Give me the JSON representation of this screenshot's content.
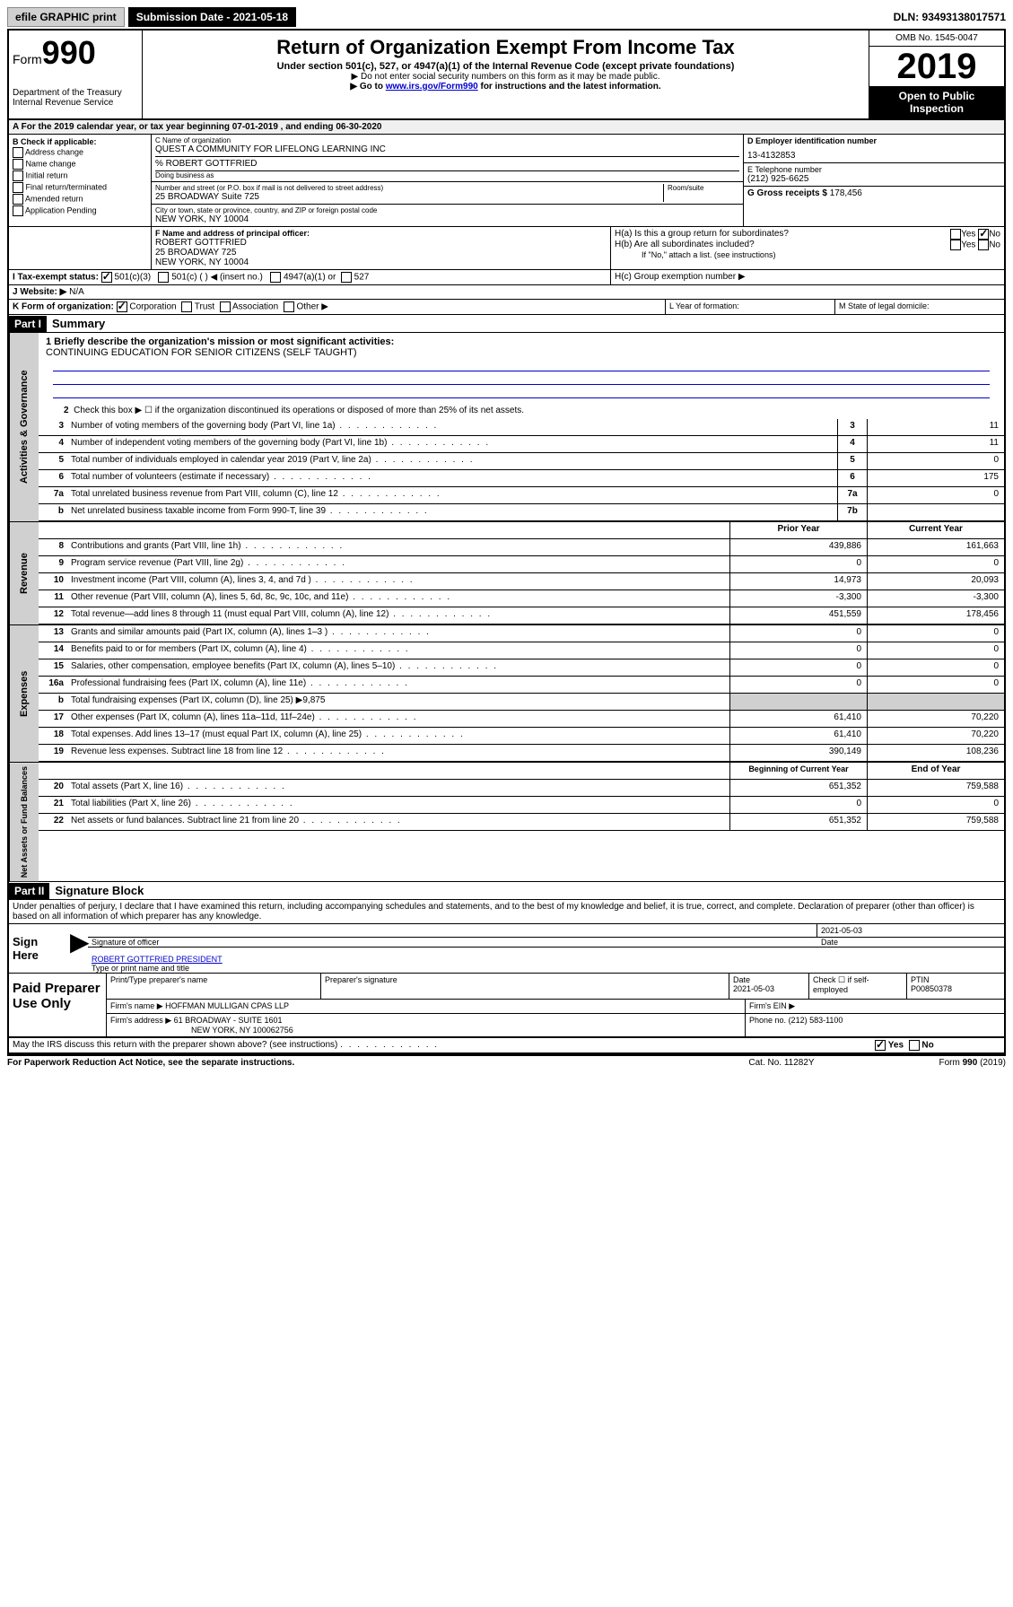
{
  "top": {
    "efile": "efile GRAPHIC print",
    "submission": "Submission Date - 2021-05-18",
    "dln": "DLN: 93493138017571"
  },
  "header": {
    "form_prefix": "Form",
    "form_number": "990",
    "title": "Return of Organization Exempt From Income Tax",
    "subtitle": "Under section 501(c), 527, or 4947(a)(1) of the Internal Revenue Code (except private foundations)",
    "note1": "▶ Do not enter social security numbers on this form as it may be made public.",
    "note2_pre": "▶ Go to ",
    "note2_link": "www.irs.gov/Form990",
    "note2_post": " for instructions and the latest information.",
    "dept": "Department of the Treasury\nInternal Revenue Service",
    "omb": "OMB No. 1545-0047",
    "year": "2019",
    "open_public": "Open to Public Inspection"
  },
  "line_a": "A For the 2019 calendar year, or tax year beginning 07-01-2019    , and ending 06-30-2020",
  "section_b": {
    "label": "B Check if applicable:",
    "items": [
      "Address change",
      "Name change",
      "Initial return",
      "Final return/terminated",
      "Amended return",
      "Application Pending"
    ]
  },
  "section_c": {
    "name_label": "C Name of organization",
    "name": "QUEST A COMMUNITY FOR LIFELONG LEARNING INC",
    "care_of": "% ROBERT GOTTFRIED",
    "dba_label": "Doing business as",
    "addr_label": "Number and street (or P.O. box if mail is not delivered to street address)",
    "room_label": "Room/suite",
    "addr": "25 BROADWAY Suite 725",
    "city_label": "City or town, state or province, country, and ZIP or foreign postal code",
    "city": "NEW YORK, NY  10004"
  },
  "section_d": {
    "label": "D Employer identification number",
    "ein": "13-4132853"
  },
  "section_e": {
    "label": "E Telephone number",
    "phone": "(212) 925-6625"
  },
  "section_g": {
    "label": "G Gross receipts $",
    "amount": "178,456"
  },
  "section_f": {
    "label": "F Name and address of principal officer:",
    "name": "ROBERT GOTTFRIED",
    "addr": "25 BROADWAY 725",
    "city": "NEW YORK, NY  10004"
  },
  "section_h": {
    "ha": "H(a)  Is this a group return for subordinates?",
    "hb": "H(b)  Are all subordinates included?",
    "hb_note": "If \"No,\" attach a list. (see instructions)",
    "hc": "H(c)  Group exemption number ▶",
    "yes": "Yes",
    "no": "No"
  },
  "section_i": {
    "label": "I    Tax-exempt status:",
    "opt1": "501(c)(3)",
    "opt2": "501(c) (  ) ◀ (insert no.)",
    "opt3": "4947(a)(1) or",
    "opt4": "527"
  },
  "section_j": {
    "label": "J   Website: ▶",
    "value": "N/A"
  },
  "section_k": {
    "label": "K Form of organization:",
    "corp": "Corporation",
    "trust": "Trust",
    "assoc": "Association",
    "other": "Other ▶"
  },
  "section_l": "L Year of formation:",
  "section_m": "M State of legal domicile:",
  "part1": {
    "header": "Part I",
    "title": "Summary",
    "line1_label": "1  Briefly describe the organization's mission or most significant activities:",
    "line1_text": "CONTINUING EDUCATION FOR SENIOR CITIZENS (SELF TAUGHT)",
    "line2": "Check this box ▶ ☐  if the organization discontinued its operations or disposed of more than 25% of its net assets.",
    "lines_ag": [
      {
        "n": "3",
        "t": "Number of voting members of the governing body (Part VI, line 1a)",
        "box": "3",
        "v": "11"
      },
      {
        "n": "4",
        "t": "Number of independent voting members of the governing body (Part VI, line 1b)",
        "box": "4",
        "v": "11"
      },
      {
        "n": "5",
        "t": "Total number of individuals employed in calendar year 2019 (Part V, line 2a)",
        "box": "5",
        "v": "0"
      },
      {
        "n": "6",
        "t": "Total number of volunteers (estimate if necessary)",
        "box": "6",
        "v": "175"
      },
      {
        "n": "7a",
        "t": "Total unrelated business revenue from Part VIII, column (C), line 12",
        "box": "7a",
        "v": "0"
      },
      {
        "n": "b",
        "t": "Net unrelated business taxable income from Form 990-T, line 39",
        "box": "7b",
        "v": ""
      }
    ],
    "prior_year": "Prior Year",
    "current_year": "Current Year",
    "revenue": [
      {
        "n": "8",
        "t": "Contributions and grants (Part VIII, line 1h)",
        "p": "439,886",
        "c": "161,663"
      },
      {
        "n": "9",
        "t": "Program service revenue (Part VIII, line 2g)",
        "p": "0",
        "c": "0"
      },
      {
        "n": "10",
        "t": "Investment income (Part VIII, column (A), lines 3, 4, and 7d )",
        "p": "14,973",
        "c": "20,093"
      },
      {
        "n": "11",
        "t": "Other revenue (Part VIII, column (A), lines 5, 6d, 8c, 9c, 10c, and 11e)",
        "p": "-3,300",
        "c": "-3,300"
      },
      {
        "n": "12",
        "t": "Total revenue—add lines 8 through 11 (must equal Part VIII, column (A), line 12)",
        "p": "451,559",
        "c": "178,456"
      }
    ],
    "expenses": [
      {
        "n": "13",
        "t": "Grants and similar amounts paid (Part IX, column (A), lines 1–3 )",
        "p": "0",
        "c": "0"
      },
      {
        "n": "14",
        "t": "Benefits paid to or for members (Part IX, column (A), line 4)",
        "p": "0",
        "c": "0"
      },
      {
        "n": "15",
        "t": "Salaries, other compensation, employee benefits (Part IX, column (A), lines 5–10)",
        "p": "0",
        "c": "0"
      },
      {
        "n": "16a",
        "t": "Professional fundraising fees (Part IX, column (A), line 11e)",
        "p": "0",
        "c": "0"
      },
      {
        "n": "b",
        "t": "Total fundraising expenses (Part IX, column (D), line 25) ▶9,875",
        "p": "",
        "c": ""
      },
      {
        "n": "17",
        "t": "Other expenses (Part IX, column (A), lines 11a–11d, 11f–24e)",
        "p": "61,410",
        "c": "70,220"
      },
      {
        "n": "18",
        "t": "Total expenses. Add lines 13–17 (must equal Part IX, column (A), line 25)",
        "p": "61,410",
        "c": "70,220"
      },
      {
        "n": "19",
        "t": "Revenue less expenses. Subtract line 18 from line 12",
        "p": "390,149",
        "c": "108,236"
      }
    ],
    "begin_year": "Beginning of Current Year",
    "end_year": "End of Year",
    "netassets": [
      {
        "n": "20",
        "t": "Total assets (Part X, line 16)",
        "p": "651,352",
        "c": "759,588"
      },
      {
        "n": "21",
        "t": "Total liabilities (Part X, line 26)",
        "p": "0",
        "c": "0"
      },
      {
        "n": "22",
        "t": "Net assets or fund balances. Subtract line 21 from line 20",
        "p": "651,352",
        "c": "759,588"
      }
    ]
  },
  "side_labels": {
    "ag": "Activities & Governance",
    "rev": "Revenue",
    "exp": "Expenses",
    "na": "Net Assets or Fund Balances"
  },
  "part2": {
    "header": "Part II",
    "title": "Signature Block",
    "penalty": "Under penalties of perjury, I declare that I have examined this return, including accompanying schedules and statements, and to the best of my knowledge and belief, it is true, correct, and complete. Declaration of preparer (other than officer) is based on all information of which preparer has any knowledge."
  },
  "sign": {
    "label": "Sign Here",
    "sig_label": "Signature of officer",
    "date": "2021-05-03",
    "date_label": "Date",
    "name": "ROBERT GOTTFRIED  PRESIDENT",
    "name_label": "Type or print name and title"
  },
  "paid": {
    "label": "Paid Preparer Use Only",
    "h1": "Print/Type preparer's name",
    "h2": "Preparer's signature",
    "h3": "Date",
    "h4": "Check ☐ if self-employed",
    "h5": "PTIN",
    "date": "2021-05-03",
    "ptin": "P00850378",
    "firm_name_label": "Firm's name    ▶",
    "firm_name": "HOFFMAN MULLIGAN CPAS LLP",
    "firm_ein_label": "Firm's EIN ▶",
    "firm_addr_label": "Firm's address ▶",
    "firm_addr": "61 BROADWAY - SUITE 1601",
    "firm_city": "NEW YORK, NY  100062756",
    "phone_label": "Phone no.",
    "phone": "(212) 583-1100"
  },
  "discuss": "May the IRS discuss this return with the preparer shown above? (see instructions)",
  "footer": {
    "left": "For Paperwork Reduction Act Notice, see the separate instructions.",
    "mid": "Cat. No. 11282Y",
    "right": "Form 990 (2019)"
  }
}
